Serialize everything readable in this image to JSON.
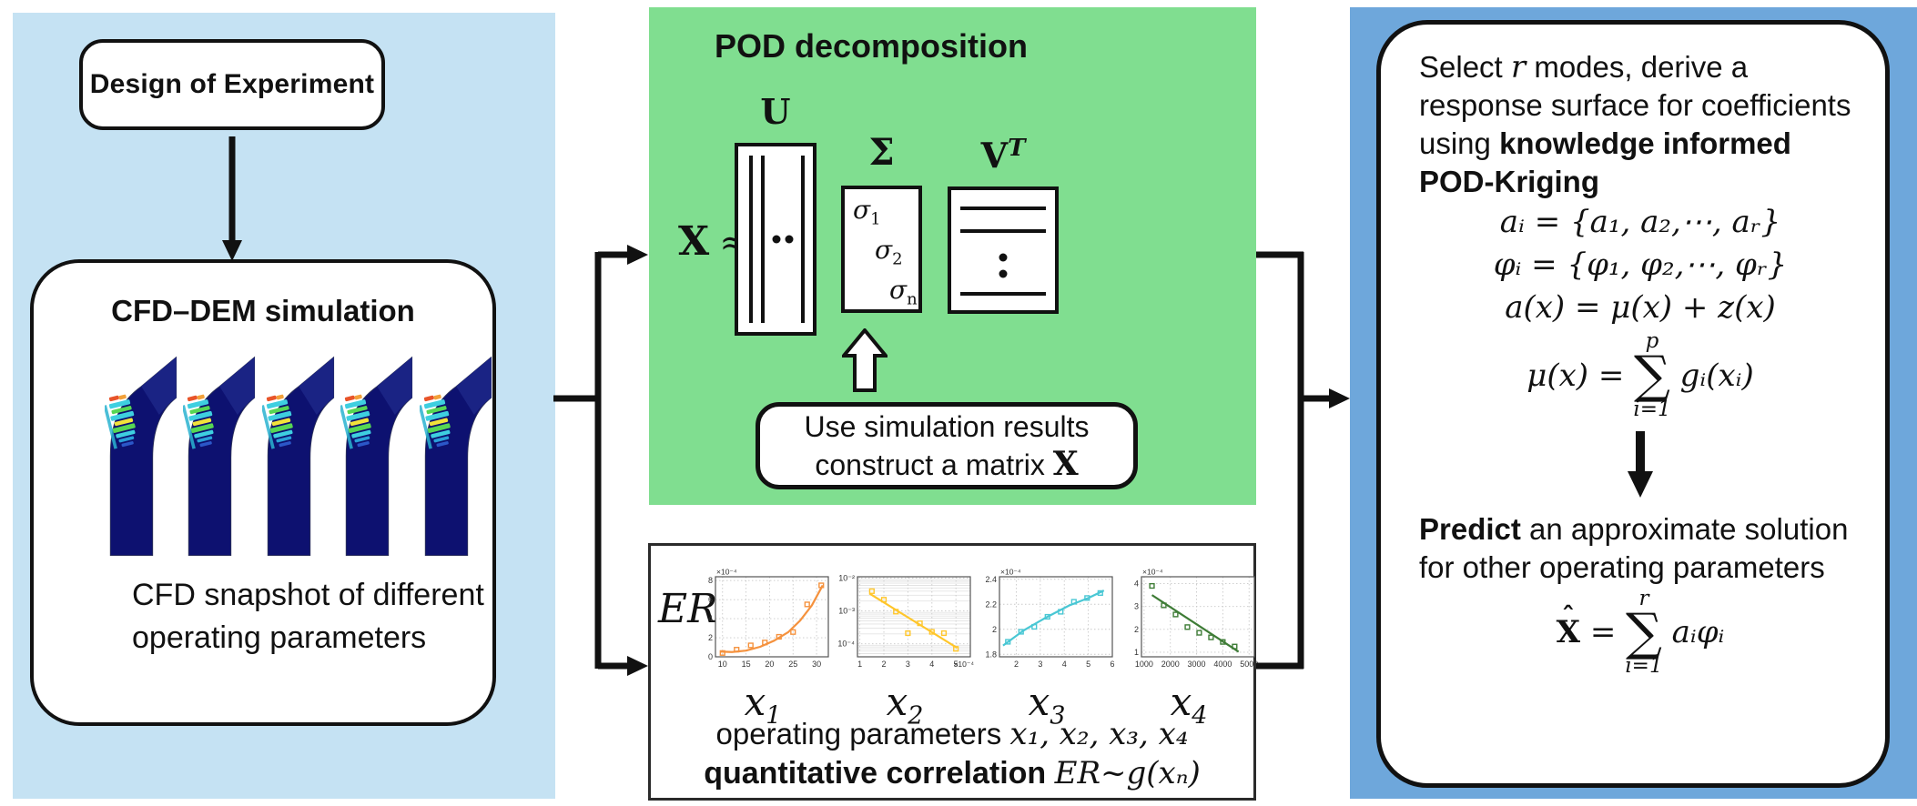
{
  "colors": {
    "left_panel_bg": "#C5E2F3",
    "green_panel_bg": "#80DE90",
    "right_panel_bg": "#6EA7DB",
    "pipe_navy": "#0D1170",
    "arrow_black": "#111111"
  },
  "left_panel": {
    "doe_label": "Design of Experiment",
    "cfd_title": "CFD–DEM simulation",
    "cfd_caption_line1": "CFD snapshot of different",
    "cfd_caption_line2": "operating parameters",
    "snapshot_count": 5
  },
  "pod_panel": {
    "title": "POD decomposition",
    "x_symbol": "X",
    "approx_symbol": "≈",
    "u_label": "U",
    "sigma_label": "Σ",
    "vt_base": "V",
    "vt_sup": "T",
    "sigma_entries": [
      {
        "base": "σ",
        "sub": "1"
      },
      {
        "base": "σ",
        "sub": "2"
      },
      {
        "base": "σ",
        "sub": "n"
      }
    ],
    "use_box_line1": "Use simulation results",
    "use_box_line2": "construct a matrix ",
    "use_box_bold_x": "X"
  },
  "correlation_panel": {
    "er_label": "ER",
    "caption_plain": "operating parameters ",
    "caption_math": "x₁, x₂, x₃, x₄",
    "caption2_bold": "quantitative correlation ",
    "caption2_math": "ER~g(xₙ)"
  },
  "right_panel": {
    "p1_pre": "Select ",
    "p1_r": "r",
    "p1_mid": " modes, derive a response surface for coefficients using ",
    "p1_bold": "knowledge informed POD-Kriging",
    "eq1": "aᵢ = {a₁, a₂,⋯, aᵣ}",
    "eq2": "φᵢ = {φ₁, φ₂,⋯, φᵣ}",
    "eq3": "a(x) = μ(x) + z(x)",
    "eq4_lhs": "μ(x) =",
    "eq4_sup": "p",
    "eq4_sigma": "∑",
    "eq4_sub": "i=1",
    "eq4_rhs": "gᵢ(xᵢ)",
    "p2_bold": "Predict",
    "p2_plain": " an approximate solution for other operating parameters",
    "eq5_hat": "ˆ",
    "eq5_base": "X",
    "eq5_eq": " =",
    "eq5_sup": "r",
    "eq5_sigma": "∑",
    "eq5_sub": "i=1",
    "eq5_rhs": "aᵢφᵢ"
  },
  "chart_data": [
    {
      "name": "ER vs x1",
      "type": "scatter",
      "color": "#F5923E",
      "x_label_base": "x",
      "x_label_sub": "1",
      "xlim": [
        8.5,
        32.5
      ],
      "xticks": [
        10,
        15,
        20,
        25,
        30
      ],
      "ylim": [
        0,
        8.4
      ],
      "yticks": [
        0,
        2,
        4,
        6,
        8
      ],
      "ytick_labels": [
        "0",
        "2",
        "4",
        "6",
        "8"
      ],
      "ylog": false,
      "y_scale_label": "×10⁻⁴",
      "x_scale_label": "",
      "grid": true,
      "legend": "none",
      "points": [
        [
          10,
          0.4
        ],
        [
          13,
          0.75
        ],
        [
          16,
          1.2
        ],
        [
          19,
          1.5
        ],
        [
          22,
          2.1
        ],
        [
          25,
          2.6
        ],
        [
          28,
          5.5
        ],
        [
          31,
          7.5
        ]
      ],
      "fit": [
        [
          9.5,
          0.55
        ],
        [
          12,
          0.5
        ],
        [
          15,
          0.65
        ],
        [
          18,
          1.05
        ],
        [
          21,
          1.7
        ],
        [
          24,
          2.6
        ],
        [
          26.5,
          3.8
        ],
        [
          29,
          5.4
        ],
        [
          31.3,
          7.5
        ]
      ]
    },
    {
      "name": "ER vs x2",
      "type": "scatter",
      "color": "#FFC62B",
      "x_label_base": "x",
      "x_label_sub": "2",
      "xlim": [
        0.9,
        5.6
      ],
      "xticks": [
        1,
        2,
        3,
        4,
        5
      ],
      "ylim": [
        4e-05,
        0.011
      ],
      "yticks": [
        0.01,
        0.001,
        0.0001
      ],
      "ytick_labels": [
        "10⁻²",
        "10⁻³",
        "10⁻⁴"
      ],
      "ylog": true,
      "y_scale_label": "",
      "x_scale_label": "×10⁻⁴",
      "grid": true,
      "legend": "none",
      "points": [
        [
          1.5,
          0.004
        ],
        [
          2,
          0.0022
        ],
        [
          2.5,
          0.00095
        ],
        [
          3,
          0.00021
        ],
        [
          3.5,
          0.00042
        ],
        [
          4,
          0.00023
        ],
        [
          4.5,
          0.00021
        ],
        [
          5,
          7e-05
        ]
      ],
      "fit": [
        [
          1.4,
          0.0034
        ],
        [
          5.05,
          7.5e-05
        ]
      ]
    },
    {
      "name": "ER vs x3",
      "type": "scatter",
      "color": "#49C7D4",
      "x_label_base": "x",
      "x_label_sub": "3",
      "xlim": [
        1.3,
        6.0
      ],
      "xticks": [
        2,
        3,
        4,
        5,
        6
      ],
      "ylim": [
        1.78,
        2.42
      ],
      "yticks": [
        1.8,
        2.0,
        2.2,
        2.4
      ],
      "ytick_labels": [
        "1.8",
        "2",
        "2.2",
        "2.4"
      ],
      "ylog": false,
      "y_scale_label": "×10⁻⁴",
      "x_scale_label": "",
      "grid": true,
      "legend": "none",
      "points": [
        [
          1.65,
          1.9
        ],
        [
          2.2,
          1.98
        ],
        [
          2.75,
          2.02
        ],
        [
          3.3,
          2.1
        ],
        [
          3.85,
          2.14
        ],
        [
          4.4,
          2.22
        ],
        [
          4.95,
          2.25
        ],
        [
          5.5,
          2.29
        ]
      ],
      "fit": [
        [
          1.45,
          1.87
        ],
        [
          2.3,
          1.99
        ],
        [
          3.2,
          2.09
        ],
        [
          4.2,
          2.19
        ],
        [
          5.0,
          2.25
        ],
        [
          5.65,
          2.31
        ]
      ]
    },
    {
      "name": "ER vs x4",
      "type": "scatter",
      "color": "#3E7C36",
      "x_label_base": "x",
      "x_label_sub": "4",
      "xlim": [
        900,
        5200
      ],
      "xticks": [
        1000,
        2000,
        3000,
        4000,
        5000
      ],
      "ylim": [
        0.8,
        4.3
      ],
      "yticks": [
        1,
        2,
        3,
        4
      ],
      "ytick_labels": [
        "1",
        "2",
        "3",
        "4"
      ],
      "ylog": false,
      "y_scale_label": "×10⁻⁴",
      "x_scale_label": "",
      "grid": true,
      "legend": "none",
      "points": [
        [
          1300,
          3.9
        ],
        [
          1750,
          3.05
        ],
        [
          2200,
          2.65
        ],
        [
          2650,
          2.1
        ],
        [
          3100,
          1.85
        ],
        [
          3550,
          1.65
        ],
        [
          4000,
          1.45
        ],
        [
          4450,
          1.25
        ]
      ],
      "fit": [
        [
          1300,
          3.5
        ],
        [
          4600,
          1.02
        ]
      ]
    }
  ]
}
